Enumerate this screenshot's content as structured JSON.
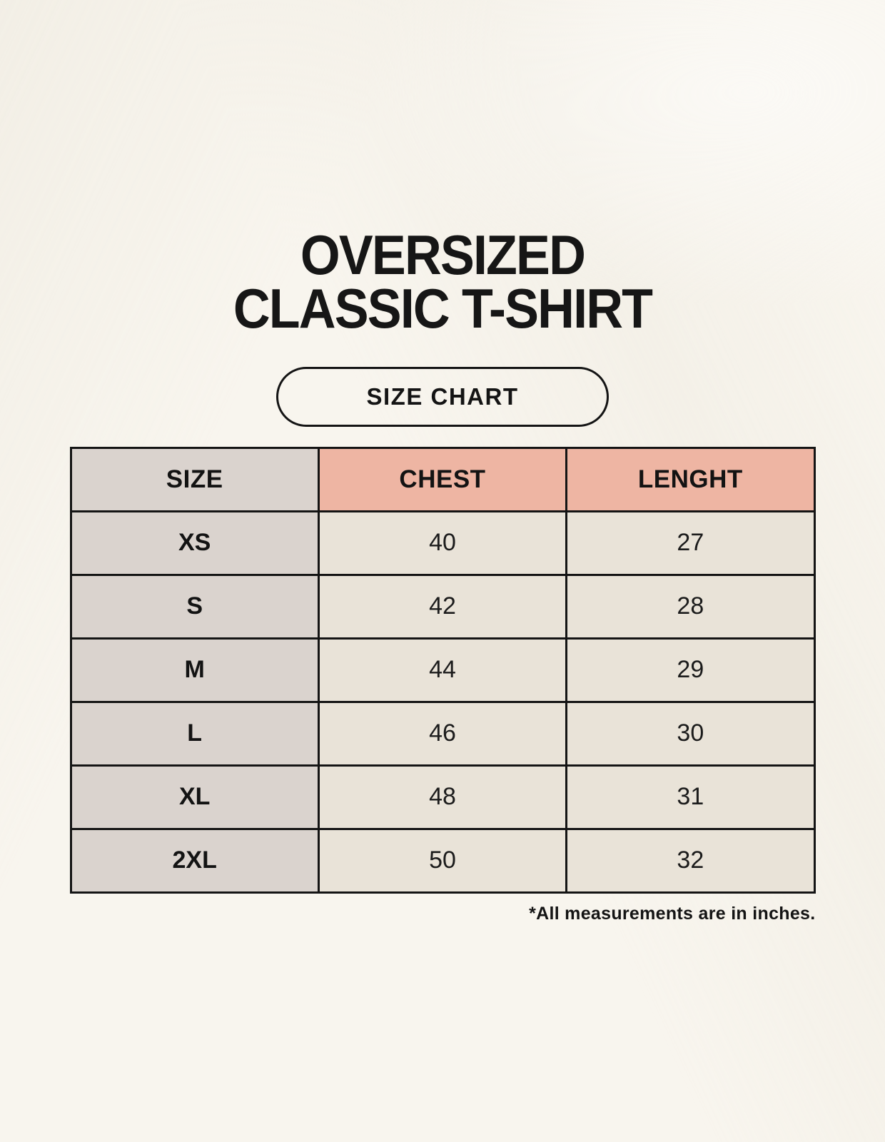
{
  "title": {
    "line1": "OVERSIZED",
    "line2": "CLASSIC T-SHIRT"
  },
  "size_chart_button": {
    "label": "SIZE CHART"
  },
  "chart_data": {
    "type": "table",
    "title": "SIZE CHART",
    "columns": [
      "SIZE",
      "CHEST",
      "LENGHT"
    ],
    "rows": [
      [
        "XS",
        "40",
        "27"
      ],
      [
        "S",
        "42",
        "28"
      ],
      [
        "M",
        "44",
        "29"
      ],
      [
        "L",
        "46",
        "30"
      ],
      [
        "XL",
        "48",
        "31"
      ],
      [
        "2XL",
        "50",
        "32"
      ]
    ],
    "units_note": "*All measurements are in inches."
  },
  "footnote": "*All measurements are in inches.",
  "colors": {
    "background": "#f8f5ee",
    "cell_gray": "#dad3ce",
    "cell_accent": "#eeb5a3",
    "cell_cream": "#e9e3d8",
    "border": "#141414",
    "text": "#171717"
  }
}
